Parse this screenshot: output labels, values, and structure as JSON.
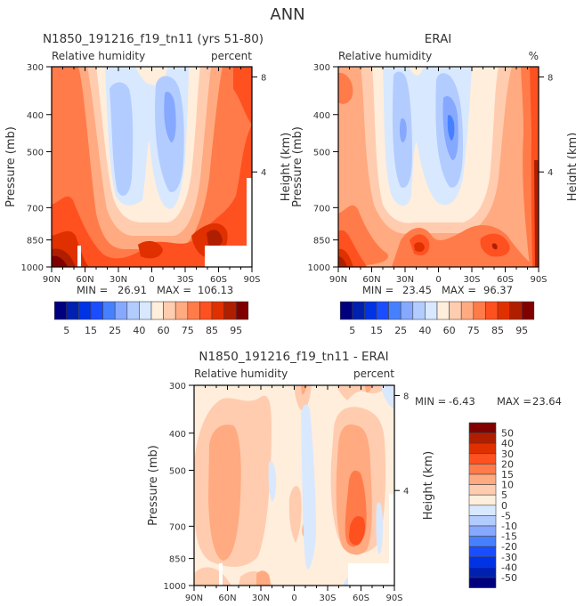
{
  "figure": {
    "season_title": "ANN"
  },
  "chart_data": [
    {
      "type": "heatmap",
      "panel": "model",
      "title": "N1850_191216_f19_tn11 (yrs 51-80)",
      "left_label": "Relative humidity",
      "right_label": "percent",
      "xlabel": "",
      "ylabel": "Pressure (mb)",
      "y2label": "Height (km)",
      "x_ticks": [
        "90N",
        "60N",
        "30N",
        "0",
        "30S",
        "60S",
        "90S"
      ],
      "x_range": [
        90,
        -90
      ],
      "y_ticks": [
        "300",
        "400",
        "500",
        "700",
        "850",
        "1000"
      ],
      "y_range_mb": [
        1000,
        300
      ],
      "y2_ticks": [
        "8",
        "4"
      ],
      "min_label": "MIN =",
      "min": "26.91",
      "max_label": "MAX =",
      "max": "106.13",
      "colorbar": {
        "orientation": "horizontal",
        "labels": [
          "5",
          "15",
          "25",
          "40",
          "60",
          "75",
          "85",
          "95"
        ],
        "levels": [
          5,
          10,
          15,
          20,
          25,
          30,
          40,
          50,
          60,
          70,
          75,
          80,
          85,
          90,
          95
        ]
      },
      "features": [
        {
          "desc": "dry minimum near 20N",
          "pressure_mb": 500,
          "value_approx": 30
        },
        {
          "desc": "dry minimum near 15S",
          "pressure_mb": 480,
          "value_approx": 27
        },
        {
          "desc": "moist boundary layer",
          "pressure_mb": 950,
          "value_approx": 90
        }
      ]
    },
    {
      "type": "heatmap",
      "panel": "obs",
      "title": "ERAI",
      "left_label": "Relative humidity",
      "right_label": "%",
      "ylabel": "Pressure (mb)",
      "y2label": "Height (km)",
      "x_ticks": [
        "90N",
        "60N",
        "30N",
        "0",
        "30S",
        "60S",
        "90S"
      ],
      "x_range": [
        90,
        -90
      ],
      "y_ticks": [
        "300",
        "400",
        "500",
        "700",
        "850",
        "1000"
      ],
      "y_range_mb": [
        1000,
        300
      ],
      "y2_ticks": [
        "8",
        "4"
      ],
      "min_label": "MIN =",
      "min": "23.45",
      "max_label": "MAX =",
      "max": "96.37",
      "colorbar": {
        "orientation": "horizontal",
        "labels": [
          "5",
          "15",
          "25",
          "40",
          "60",
          "75",
          "85",
          "95"
        ],
        "levels": [
          5,
          10,
          15,
          20,
          25,
          30,
          40,
          50,
          60,
          70,
          75,
          80,
          85,
          90,
          95
        ]
      },
      "features": [
        {
          "desc": "dry minimum near 20N",
          "pressure_mb": 470,
          "value_approx": 30
        },
        {
          "desc": "dry minimum near 20S",
          "pressure_mb": 480,
          "value_approx": 24
        }
      ]
    },
    {
      "type": "heatmap",
      "panel": "difference",
      "title": "N1850_191216_f19_tn11 - ERAI",
      "left_label": "Relative humidity",
      "right_label": "percent",
      "ylabel": "Pressure (mb)",
      "y2label": "Height (km)",
      "x_ticks": [
        "90N",
        "60N",
        "30N",
        "0",
        "30S",
        "60S",
        "90S"
      ],
      "x_range": [
        90,
        -90
      ],
      "y_ticks": [
        "300",
        "400",
        "500",
        "700",
        "850",
        "1000"
      ],
      "y_range_mb": [
        1000,
        300
      ],
      "y2_ticks": [
        "8",
        "4"
      ],
      "min_label": "MIN =",
      "min": "-6.43",
      "max_label": "MAX =",
      "max": "23.64",
      "colorbar": {
        "orientation": "vertical",
        "labels": [
          "50",
          "40",
          "30",
          "20",
          "15",
          "10",
          "5",
          "0",
          "-5",
          "-10",
          "-15",
          "-20",
          "-30",
          "-40",
          "-50"
        ]
      },
      "features": [
        {
          "desc": "positive bias maximum near 45S",
          "pressure_mb": 800,
          "value_approx": 22
        }
      ]
    }
  ],
  "palette": {
    "colors": [
      "#00007f",
      "#0020b0",
      "#0032e6",
      "#1a4dff",
      "#4680ff",
      "#86a8ff",
      "#b3ccff",
      "#d8e8ff",
      "#ffeedb",
      "#ffccb0",
      "#ffaa80",
      "#ff7b4a",
      "#ff5020",
      "#e03000",
      "#b01e00",
      "#800000"
    ]
  }
}
